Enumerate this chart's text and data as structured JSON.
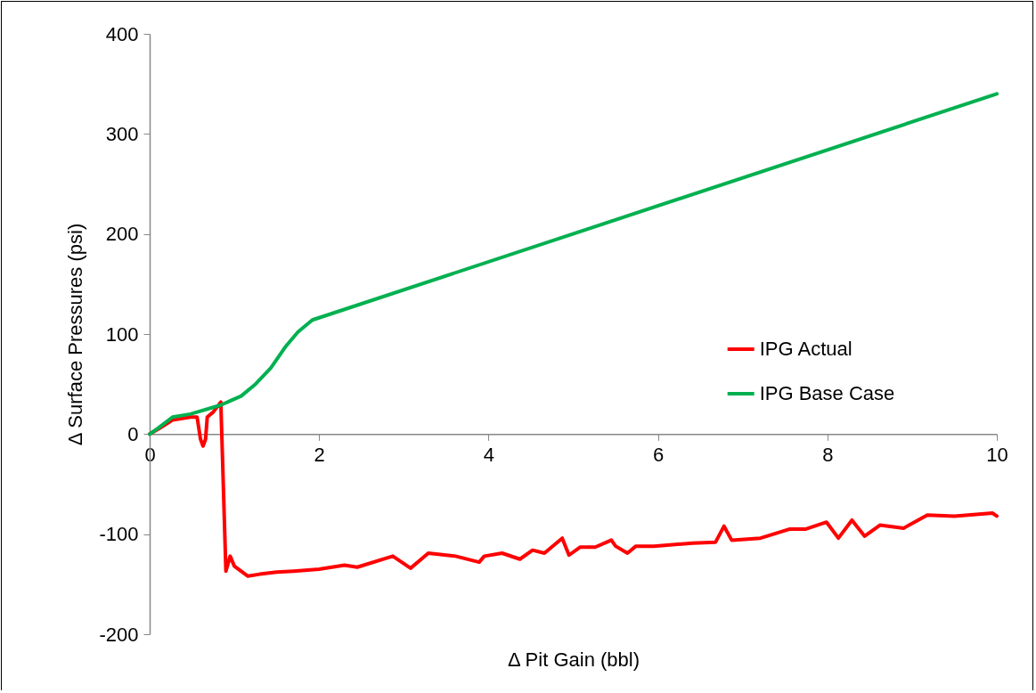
{
  "chart_data": {
    "type": "line",
    "xlabel": "Δ Pit Gain (bbl)",
    "ylabel": "Δ Surface Pressures (psi)",
    "xlim": [
      0,
      10
    ],
    "ylim": [
      -200,
      400
    ],
    "xticks": [
      0,
      2,
      4,
      6,
      8,
      10
    ],
    "yticks": [
      -200,
      -100,
      0,
      100,
      200,
      300,
      400
    ],
    "grid": false,
    "legend": "right",
    "marker": "none",
    "line_style": "solid",
    "series": [
      {
        "name": "IPG Actual",
        "color": "#ff0000",
        "x": [
          0,
          0.1,
          0.27,
          0.48,
          0.56,
          0.6,
          0.63,
          0.66,
          0.68,
          0.75,
          0.84,
          0.9,
          0.95,
          1.0,
          1.16,
          1.3,
          1.5,
          1.7,
          2.0,
          2.3,
          2.45,
          2.87,
          3.08,
          3.29,
          3.61,
          3.89,
          3.95,
          4.16,
          4.37,
          4.52,
          4.66,
          4.87,
          4.95,
          5.08,
          5.26,
          5.45,
          5.5,
          5.64,
          5.74,
          5.95,
          6.41,
          6.68,
          6.78,
          6.87,
          7.21,
          7.55,
          7.74,
          7.99,
          8.13,
          8.29,
          8.44,
          8.62,
          8.9,
          9.18,
          9.5,
          9.95,
          10
        ],
        "values": [
          0,
          5,
          14,
          17,
          17,
          -5,
          -12,
          -5,
          17,
          22,
          32,
          -137,
          -122,
          -132,
          -142,
          -140,
          -138,
          -137,
          -135,
          -131,
          -133,
          -122,
          -134,
          -119,
          -122,
          -128,
          -122,
          -119,
          -125,
          -116,
          -119,
          -104,
          -121,
          -113,
          -113,
          -106,
          -112,
          -119,
          -112,
          -112,
          -109,
          -108,
          -92,
          -106,
          -104,
          -95,
          -95,
          -88,
          -104,
          -86,
          -102,
          -91,
          -94,
          -81,
          -82,
          -79,
          -82
        ]
      },
      {
        "name": "IPG Base Case",
        "color": "#00b050",
        "x": [
          0,
          0.1,
          0.27,
          0.48,
          0.84,
          1.08,
          1.25,
          1.43,
          1.61,
          1.75,
          1.92,
          10
        ],
        "values": [
          0,
          6,
          17,
          20,
          29,
          38,
          50,
          66,
          88,
          102,
          114,
          340
        ]
      }
    ]
  }
}
